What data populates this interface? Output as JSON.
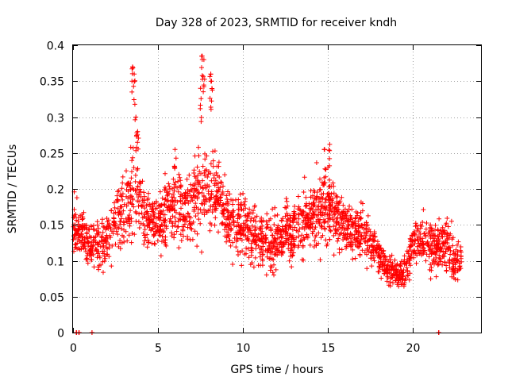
{
  "chart_data": {
    "type": "scatter",
    "title": "Day 328 of 2023, SRMTID for receiver kndh",
    "xlabel": "GPS time / hours",
    "ylabel": "SRMTID / TECUs",
    "xlim": [
      0,
      24
    ],
    "ylim": [
      0,
      0.4
    ],
    "x_ticks": [
      0,
      5,
      10,
      15,
      20
    ],
    "x_tick_labels": [
      "0",
      "5",
      "10",
      "15",
      "20"
    ],
    "y_ticks": [
      0,
      0.05,
      0.1,
      0.15,
      0.2,
      0.25,
      0.3,
      0.35,
      0.4
    ],
    "y_tick_labels": [
      "0",
      "0.05",
      "0.1",
      "0.15",
      "0.2",
      "0.25",
      "0.3",
      "0.35",
      "0.4"
    ],
    "grid": true,
    "marker": "plus",
    "color": "#ff0000",
    "series": [
      {
        "name": "SRMTID",
        "profile_hour": [
          0.0,
          0.5,
          1.0,
          1.5,
          2.0,
          2.5,
          3.0,
          3.5,
          4.0,
          4.5,
          5.0,
          5.5,
          6.0,
          6.5,
          7.0,
          7.5,
          8.0,
          8.5,
          9.0,
          9.5,
          10.0,
          10.5,
          11.0,
          11.5,
          12.0,
          12.5,
          13.0,
          13.5,
          14.0,
          14.5,
          15.0,
          15.5,
          16.0,
          16.5,
          17.0,
          17.5,
          18.0,
          18.5,
          19.0,
          19.5,
          20.0,
          20.5,
          21.0,
          21.5,
          22.0,
          22.5,
          23.0
        ],
        "profile_center": [
          0.15,
          0.14,
          0.12,
          0.12,
          0.13,
          0.16,
          0.17,
          0.2,
          0.17,
          0.16,
          0.15,
          0.17,
          0.18,
          0.17,
          0.18,
          0.19,
          0.19,
          0.2,
          0.16,
          0.15,
          0.15,
          0.14,
          0.13,
          0.12,
          0.13,
          0.14,
          0.14,
          0.15,
          0.17,
          0.17,
          0.18,
          0.16,
          0.15,
          0.14,
          0.14,
          0.13,
          0.11,
          0.09,
          0.08,
          0.08,
          0.13,
          0.13,
          0.12,
          0.12,
          0.12,
          0.1,
          0.1
        ],
        "profile_spread": [
          0.04,
          0.04,
          0.03,
          0.04,
          0.04,
          0.05,
          0.05,
          0.09,
          0.05,
          0.04,
          0.04,
          0.05,
          0.05,
          0.05,
          0.05,
          0.09,
          0.06,
          0.05,
          0.04,
          0.04,
          0.05,
          0.05,
          0.04,
          0.04,
          0.04,
          0.04,
          0.05,
          0.05,
          0.05,
          0.06,
          0.06,
          0.04,
          0.04,
          0.04,
          0.04,
          0.04,
          0.03,
          0.02,
          0.02,
          0.03,
          0.03,
          0.03,
          0.04,
          0.04,
          0.04,
          0.03,
          0.03
        ],
        "peaks": [
          {
            "x": 3.5,
            "y": 0.37
          },
          {
            "x": 3.6,
            "y": 0.36
          },
          {
            "x": 3.7,
            "y": 0.3
          },
          {
            "x": 3.8,
            "y": 0.28
          },
          {
            "x": 7.6,
            "y": 0.385
          },
          {
            "x": 7.7,
            "y": 0.38
          },
          {
            "x": 8.1,
            "y": 0.36
          },
          {
            "x": 8.15,
            "y": 0.35
          },
          {
            "x": 7.5,
            "y": 0.34
          },
          {
            "x": 6.0,
            "y": 0.255
          },
          {
            "x": 14.8,
            "y": 0.255
          },
          {
            "x": 15.1,
            "y": 0.262
          }
        ],
        "zero_values": [
          {
            "x": 0.2,
            "y": 0.0
          },
          {
            "x": 0.35,
            "y": 0.0
          },
          {
            "x": 1.1,
            "y": 0.0
          },
          {
            "x": 21.5,
            "y": 0.0
          }
        ]
      }
    ]
  }
}
